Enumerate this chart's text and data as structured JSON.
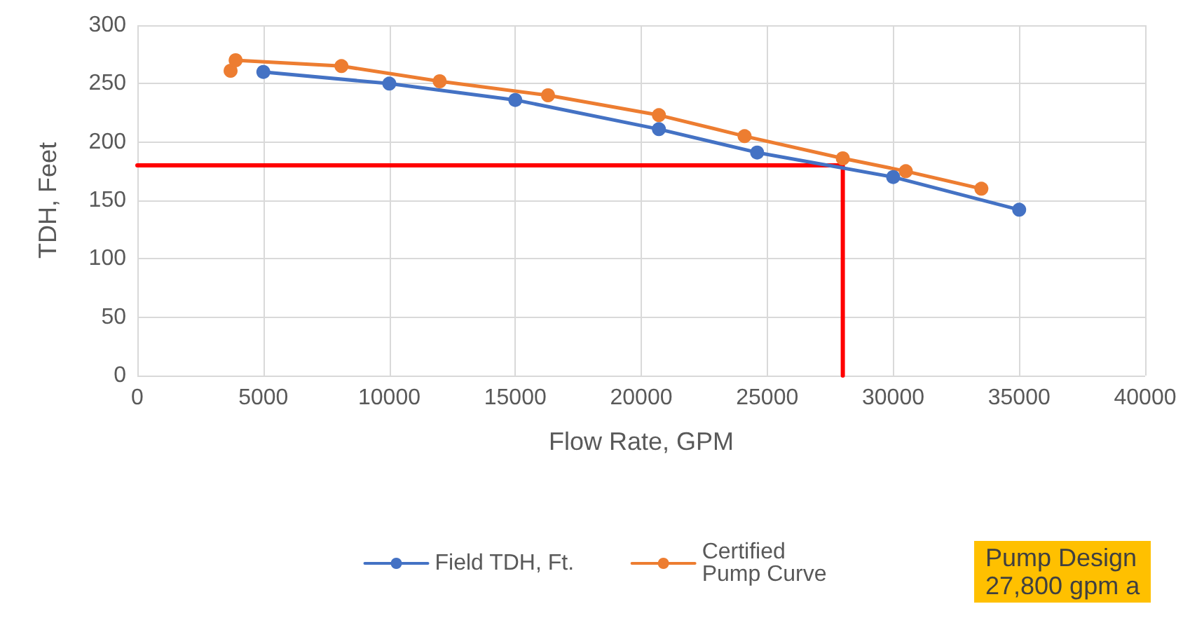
{
  "chart_data": {
    "type": "line",
    "xlabel": "Flow Rate, GPM",
    "ylabel": "TDH, Feet",
    "xlim": [
      0,
      40000
    ],
    "xticks": [
      0,
      5000,
      10000,
      15000,
      20000,
      25000,
      30000,
      35000,
      40000
    ],
    "ylim": [
      0,
      300
    ],
    "yticks": [
      0,
      50,
      100,
      150,
      200,
      250,
      300
    ],
    "grid": true,
    "legend": "bottom",
    "marker": "circle",
    "line_style": "solid",
    "series": [
      {
        "name": "Field TDH, Ft.",
        "color": "#4472c4",
        "x": [
          5000,
          10000,
          15000,
          20700,
          24600,
          30000,
          35000
        ],
        "values": [
          260,
          250,
          236,
          211,
          191,
          170,
          142
        ]
      },
      {
        "name": "Certified Pump Curve",
        "color": "#ed7d31",
        "x": [
          3700,
          3900,
          8100,
          12000,
          16300,
          20700,
          24100,
          28000,
          30500,
          33500
        ],
        "values": [
          261,
          270,
          265,
          252,
          240,
          223,
          205,
          186,
          175,
          160
        ]
      },
      {
        "color": "#ff0000",
        "marker": "none",
        "x": [
          0,
          28000,
          28000
        ],
        "values": [
          180,
          180,
          0
        ]
      }
    ],
    "annotations": [
      "Pump Design\n27,800 gpm a"
    ]
  }
}
